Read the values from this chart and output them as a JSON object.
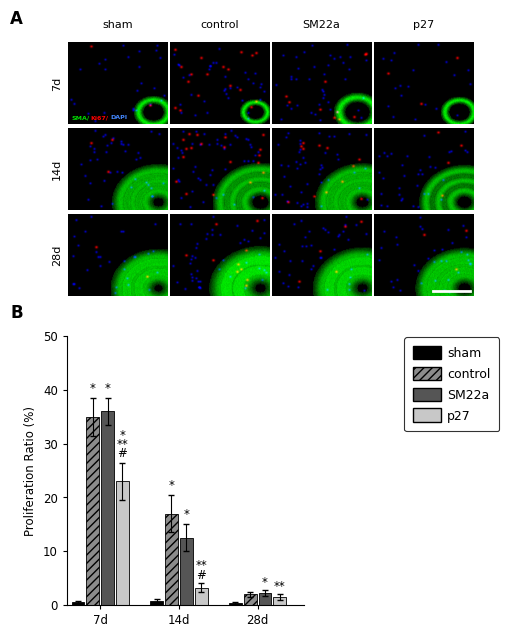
{
  "panel_A_label": "A",
  "panel_B_label": "B",
  "col_labels": [
    "sham",
    "control",
    "SM22a",
    "p27"
  ],
  "row_labels": [
    "7d",
    "14d",
    "28d"
  ],
  "legend_labels": [
    "sham",
    "control",
    "SM22a",
    "p27"
  ],
  "xlabel_groups": [
    "7d",
    "14d",
    "28d"
  ],
  "ylabel": "Proliferation Ratio (%)",
  "ylim": [
    0,
    50
  ],
  "yticks": [
    0,
    10,
    20,
    30,
    40,
    50
  ],
  "bar_data": {
    "sham": [
      0.5,
      0.8,
      0.3
    ],
    "control": [
      35.0,
      17.0,
      2.0
    ],
    "SM22a": [
      36.0,
      12.5,
      2.2
    ],
    "p27": [
      23.0,
      3.2,
      1.5
    ]
  },
  "bar_errors": {
    "sham": [
      0.3,
      0.4,
      0.2
    ],
    "control": [
      3.5,
      3.5,
      0.5
    ],
    "SM22a": [
      2.5,
      2.5,
      0.5
    ],
    "p27": [
      3.5,
      0.8,
      0.5
    ]
  },
  "bar_colors": {
    "sham": "#000000",
    "control": "#8c8c8c",
    "SM22a": "#555555",
    "p27": "#c8c8c8"
  },
  "hatch": {
    "sham": "",
    "control": "////",
    "SM22a": "",
    "p27": ""
  },
  "figure_bg": "#ffffff",
  "font_size": 9
}
